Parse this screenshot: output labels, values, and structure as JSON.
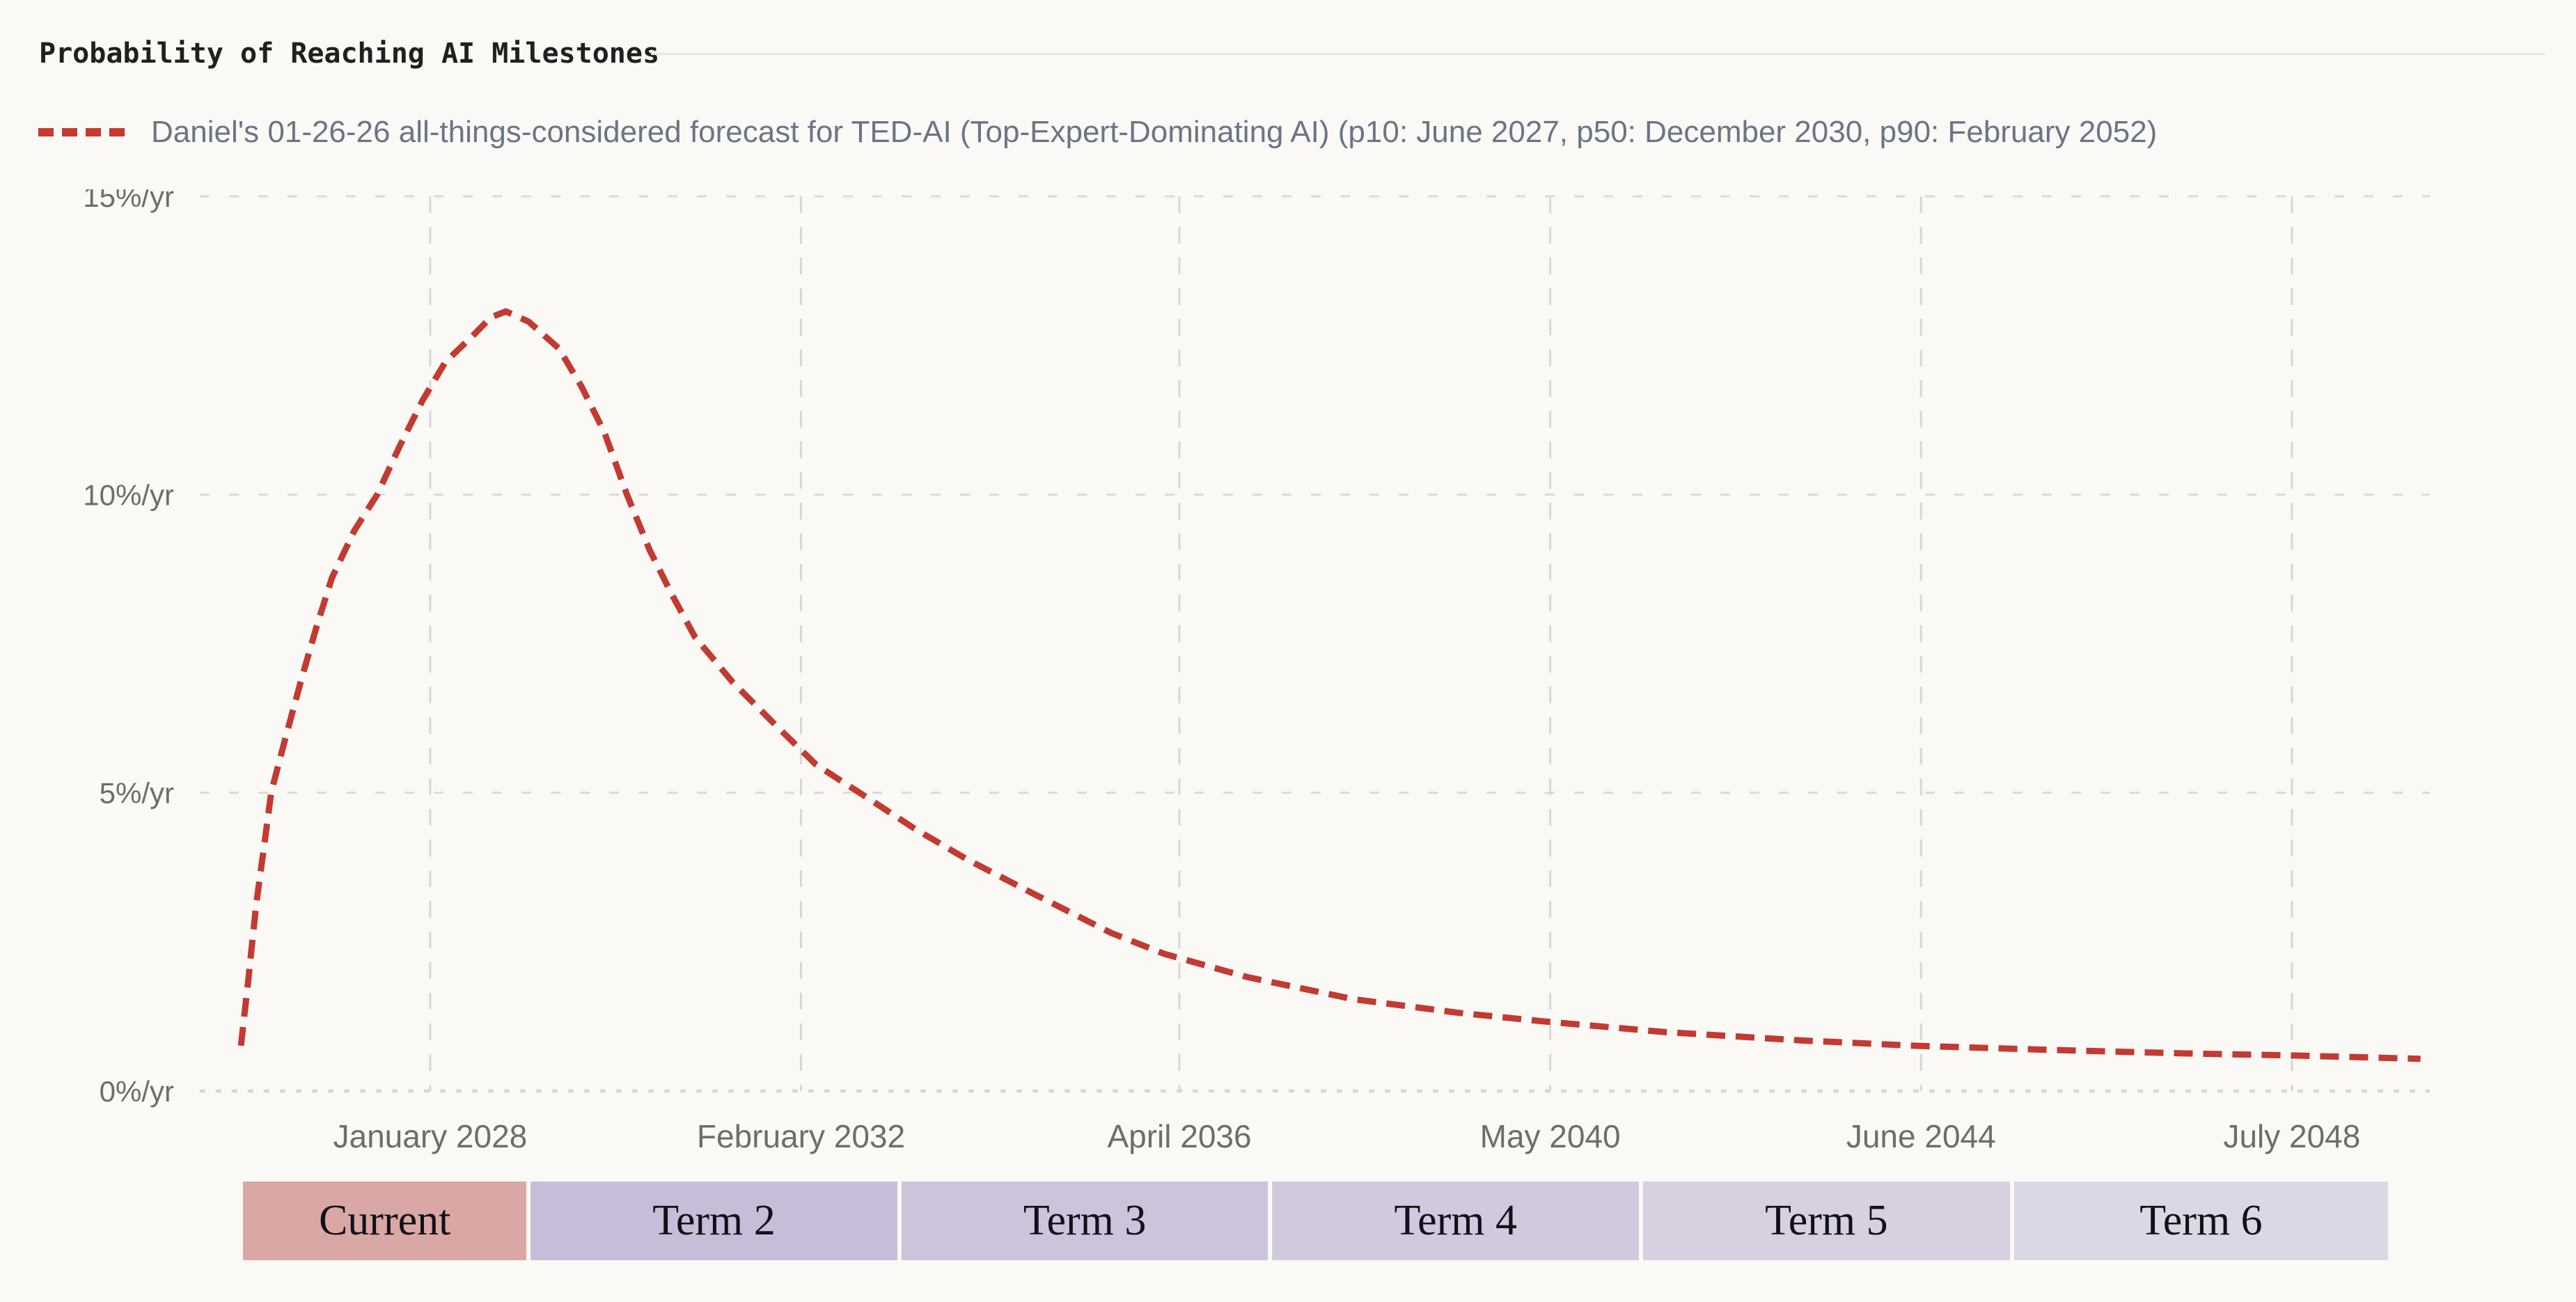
{
  "header": {
    "title": "Probability of Reaching AI Milestones"
  },
  "legend": {
    "label": "Daniel's 01-26-26 all-things-considered forecast for TED-AI (Top-Expert-Dominating AI) (p10: June 2027, p50: December 2030, p90: February 2052)",
    "color": "#c5392f"
  },
  "terms": {
    "bands": [
      {
        "label": "Current",
        "start": "2025-12",
        "end": "2029-02",
        "color": "#d9a8a4"
      },
      {
        "label": "Term 2",
        "start": "2029-02",
        "end": "2033-03",
        "color": "#c6bed8"
      },
      {
        "label": "Term 3",
        "start": "2033-03",
        "end": "2037-04",
        "color": "#cbc4db"
      },
      {
        "label": "Term 4",
        "start": "2037-04",
        "end": "2041-05",
        "color": "#d1cade"
      },
      {
        "label": "Term 5",
        "start": "2041-05",
        "end": "2045-06",
        "color": "#d6d0e1"
      },
      {
        "label": "Term 6",
        "start": "2045-06",
        "end": "2049-08",
        "color": "#dcd7e4"
      }
    ]
  },
  "chart_data": {
    "type": "line",
    "title": "Probability of Reaching AI Milestones",
    "series": [
      {
        "name": "Daniel's 01-26-26 all-things-considered forecast for TED-AI (Top-Expert-Dominating AI) (p10: June 2027, p50: December 2030, p90: February 2052)",
        "line_style": "dashed",
        "color": "#c23a31"
      }
    ],
    "xlabel": "",
    "ylabel": "%/yr",
    "ylim": [
      0,
      15
    ],
    "x_range": [
      "2025-12",
      "2050-01"
    ],
    "grid": true,
    "legend_position": "top-left",
    "y_ticks": [
      {
        "label": "0%/yr",
        "value": 0
      },
      {
        "label": "5%/yr",
        "value": 5
      },
      {
        "label": "10%/yr",
        "value": 10
      },
      {
        "label": "15%/yr",
        "value": 15
      }
    ],
    "x_ticks": [
      {
        "label": "January 2028",
        "date": "2028-01"
      },
      {
        "label": "February 2032",
        "date": "2032-02"
      },
      {
        "label": "April 2036",
        "date": "2036-04"
      },
      {
        "label": "May 2040",
        "date": "2040-05"
      },
      {
        "label": "June 2044",
        "date": "2044-06"
      },
      {
        "label": "July 2048",
        "date": "2048-07"
      }
    ],
    "points": [
      {
        "date": "2025-12",
        "value": 0.76
      },
      {
        "date": "2026-01",
        "value": 1.9
      },
      {
        "date": "2026-02",
        "value": 3.12
      },
      {
        "date": "2026-03",
        "value": 4.05
      },
      {
        "date": "2026-04",
        "value": 5.01
      },
      {
        "date": "2026-06",
        "value": 5.98
      },
      {
        "date": "2026-08",
        "value": 6.91
      },
      {
        "date": "2026-10",
        "value": 7.79
      },
      {
        "date": "2026-12",
        "value": 8.6
      },
      {
        "date": "2027-03",
        "value": 9.4
      },
      {
        "date": "2027-06",
        "value": 10.0
      },
      {
        "date": "2027-09",
        "value": 10.82
      },
      {
        "date": "2027-12",
        "value": 11.58
      },
      {
        "date": "2028-03",
        "value": 12.22
      },
      {
        "date": "2028-07",
        "value": 12.71
      },
      {
        "date": "2028-09",
        "value": 12.97
      },
      {
        "date": "2028-11",
        "value": 13.07
      },
      {
        "date": "2029-02",
        "value": 12.9
      },
      {
        "date": "2029-06",
        "value": 12.45
      },
      {
        "date": "2029-09",
        "value": 11.81
      },
      {
        "date": "2029-12",
        "value": 11.05
      },
      {
        "date": "2030-03",
        "value": 10.0
      },
      {
        "date": "2030-06",
        "value": 9.07
      },
      {
        "date": "2030-09",
        "value": 8.31
      },
      {
        "date": "2030-12",
        "value": 7.61
      },
      {
        "date": "2031-05",
        "value": 6.85
      },
      {
        "date": "2031-11",
        "value": 6.09
      },
      {
        "date": "2032-04",
        "value": 5.47
      },
      {
        "date": "2032-10",
        "value": 4.98
      },
      {
        "date": "2033-05",
        "value": 4.4
      },
      {
        "date": "2033-12",
        "value": 3.88
      },
      {
        "date": "2034-09",
        "value": 3.29
      },
      {
        "date": "2035-07",
        "value": 2.65
      },
      {
        "date": "2036-02",
        "value": 2.3
      },
      {
        "date": "2037-01",
        "value": 1.91
      },
      {
        "date": "2038-03",
        "value": 1.54
      },
      {
        "date": "2039-05",
        "value": 1.31
      },
      {
        "date": "2040-04",
        "value": 1.17
      },
      {
        "date": "2041-08",
        "value": 0.99
      },
      {
        "date": "2043-02",
        "value": 0.85
      },
      {
        "date": "2044-05",
        "value": 0.76
      },
      {
        "date": "2045-11",
        "value": 0.69
      },
      {
        "date": "2047-05",
        "value": 0.63
      },
      {
        "date": "2048-06",
        "value": 0.6
      },
      {
        "date": "2049-12",
        "value": 0.54
      }
    ]
  }
}
